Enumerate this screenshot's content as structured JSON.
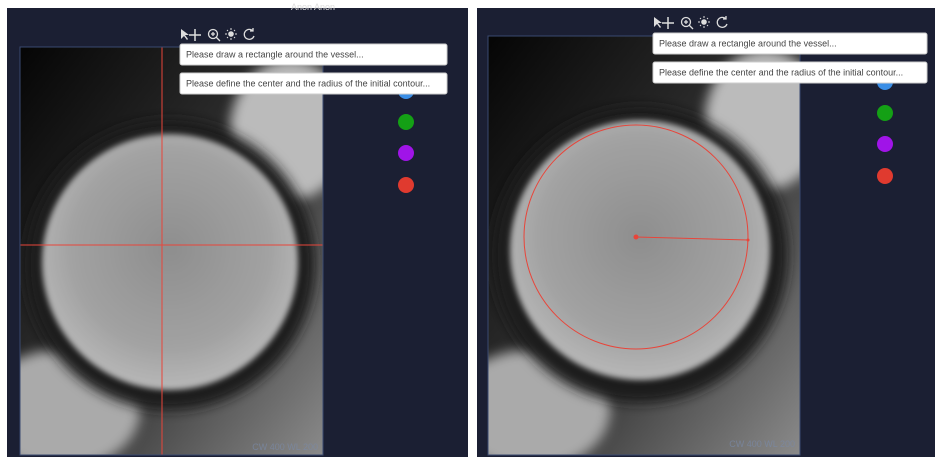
{
  "panels": [
    {
      "header": "Anon Anon",
      "tooltips": [
        "Please draw a rectangle around the vessel...",
        "Please define the center and the radius of the initial contour..."
      ],
      "overlay": "CW 400 WL 200"
    },
    {
      "tooltips": [
        "Please draw a rectangle around the vessel...",
        "Please define the center and the radius of the initial contour..."
      ],
      "overlay": "CW 400 WL 200"
    }
  ]
}
